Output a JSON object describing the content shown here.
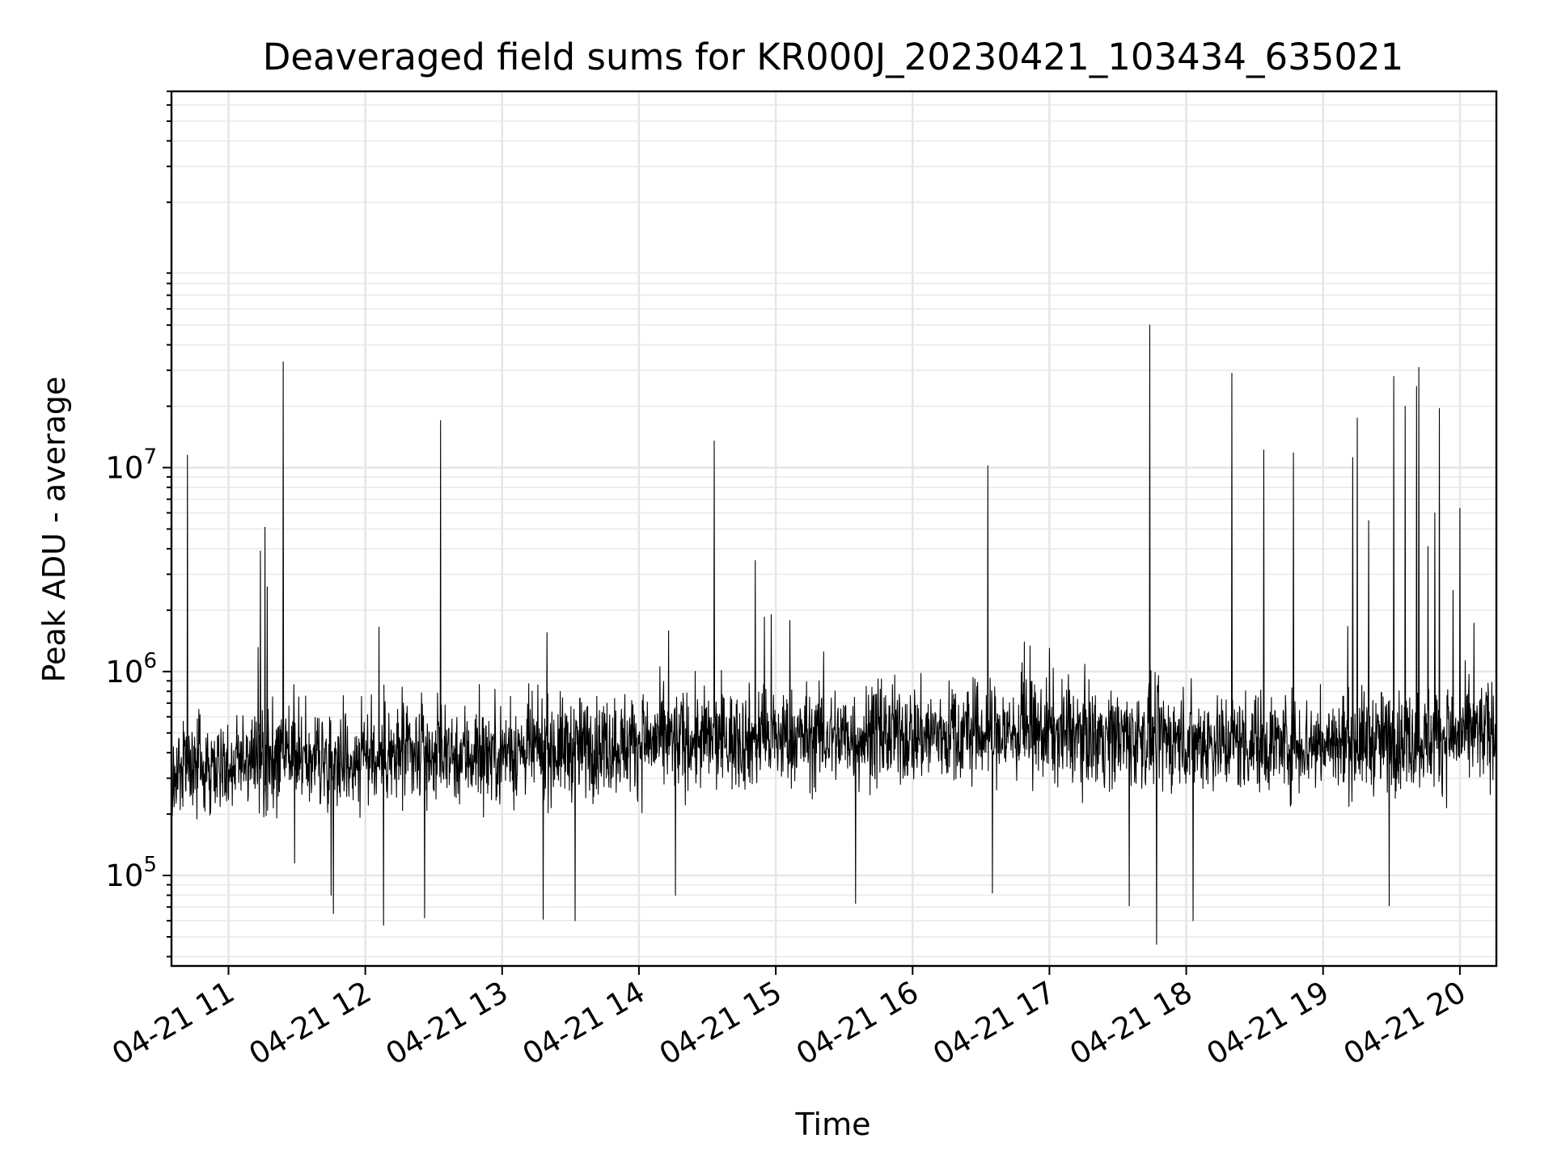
{
  "chart_data": {
    "type": "line",
    "title": "Deaveraged field sums for KR000J_20230421_103434_635021",
    "xlabel": "Time",
    "ylabel": "Peak ADU - average",
    "yscale": "log",
    "grid": true,
    "legend": "none",
    "line_color": "#000000",
    "xlim": [
      "2023-04-21 10:35",
      "2023-04-21 20:16"
    ],
    "ylim": [
      36000,
      700000000
    ],
    "x_ticks": [
      {
        "value": "2023-04-21 11:00",
        "label": "04-21 11"
      },
      {
        "value": "2023-04-21 12:00",
        "label": "04-21 12"
      },
      {
        "value": "2023-04-21 13:00",
        "label": "04-21 13"
      },
      {
        "value": "2023-04-21 14:00",
        "label": "04-21 14"
      },
      {
        "value": "2023-04-21 15:00",
        "label": "04-21 15"
      },
      {
        "value": "2023-04-21 16:00",
        "label": "04-21 16"
      },
      {
        "value": "2023-04-21 17:00",
        "label": "04-21 17"
      },
      {
        "value": "2023-04-21 18:00",
        "label": "04-21 18"
      },
      {
        "value": "2023-04-21 19:00",
        "label": "04-21 19"
      },
      {
        "value": "2023-04-21 20:00",
        "label": "04-21 20"
      }
    ],
    "y_ticks": [
      {
        "value": 100000,
        "base": "10",
        "exp": "5"
      },
      {
        "value": 1000000,
        "base": "10",
        "exp": "6"
      },
      {
        "value": 10000000,
        "base": "10",
        "exp": "7"
      }
    ],
    "series": [
      {
        "baseline": [
          [
            "2023-04-21 10:35",
            330000
          ],
          [
            "2023-04-21 11:00",
            360000
          ],
          [
            "2023-04-21 12:00",
            380000
          ],
          [
            "2023-04-21 13:00",
            400000
          ],
          [
            "2023-04-21 14:00",
            450000
          ],
          [
            "2023-04-21 15:00",
            470000
          ],
          [
            "2023-04-21 16:00",
            490000
          ],
          [
            "2023-04-21 17:00",
            500000
          ],
          [
            "2023-04-21 18:00",
            460000
          ],
          [
            "2023-04-21 19:00",
            440000
          ],
          [
            "2023-04-21 20:00",
            480000
          ],
          [
            "2023-04-21 20:16",
            520000
          ]
        ],
        "peaks": [
          [
            "2023-04-21 10:42",
            11500000
          ],
          [
            "2023-04-21 11:14",
            3900000
          ],
          [
            "2023-04-21 11:16",
            5100000
          ],
          [
            "2023-04-21 11:17",
            2600000
          ],
          [
            "2023-04-21 11:24",
            33000000
          ],
          [
            "2023-04-21 12:06",
            1650000
          ],
          [
            "2023-04-21 12:33",
            17000000
          ],
          [
            "2023-04-21 13:18",
            1300000
          ],
          [
            "2023-04-21 14:33",
            13500000
          ],
          [
            "2023-04-21 14:51",
            3500000
          ],
          [
            "2023-04-21 14:55",
            1850000
          ],
          [
            "2023-04-21 14:58",
            1900000
          ],
          [
            "2023-04-21 15:21",
            1250000
          ],
          [
            "2023-04-21 16:33",
            10200000
          ],
          [
            "2023-04-21 17:00",
            1300000
          ],
          [
            "2023-04-21 17:44",
            50000000
          ],
          [
            "2023-04-21 18:20",
            29000000
          ],
          [
            "2023-04-21 18:34",
            12200000
          ],
          [
            "2023-04-21 18:47",
            11800000
          ],
          [
            "2023-04-21 19:13",
            11200000
          ],
          [
            "2023-04-21 19:15",
            17500000
          ],
          [
            "2023-04-21 19:20",
            5500000
          ],
          [
            "2023-04-21 19:29",
            17800000
          ],
          [
            "2023-04-21 19:31",
            28000000
          ],
          [
            "2023-04-21 19:36",
            20000000
          ],
          [
            "2023-04-21 19:41",
            25000000
          ],
          [
            "2023-04-21 19:42",
            31000000
          ],
          [
            "2023-04-21 19:46",
            4100000
          ],
          [
            "2023-04-21 19:49",
            6000000
          ],
          [
            "2023-04-21 19:51",
            19500000
          ],
          [
            "2023-04-21 19:57",
            2500000
          ],
          [
            "2023-04-21 20:00",
            6300000
          ],
          [
            "2023-04-21 20:16",
            3000000
          ]
        ],
        "dips": [
          [
            "2023-04-21 11:29",
            115000
          ],
          [
            "2023-04-21 11:45",
            80000
          ],
          [
            "2023-04-21 11:46",
            65000
          ],
          [
            "2023-04-21 12:08",
            57000
          ],
          [
            "2023-04-21 12:26",
            62000
          ],
          [
            "2023-04-21 13:18",
            61000
          ],
          [
            "2023-04-21 13:32",
            60000
          ],
          [
            "2023-04-21 14:16",
            80000
          ],
          [
            "2023-04-21 15:35",
            73000
          ],
          [
            "2023-04-21 16:35",
            82000
          ],
          [
            "2023-04-21 17:35",
            71000
          ],
          [
            "2023-04-21 17:47",
            46000
          ],
          [
            "2023-04-21 18:03",
            60000
          ],
          [
            "2023-04-21 19:29",
            71000
          ]
        ]
      }
    ]
  }
}
